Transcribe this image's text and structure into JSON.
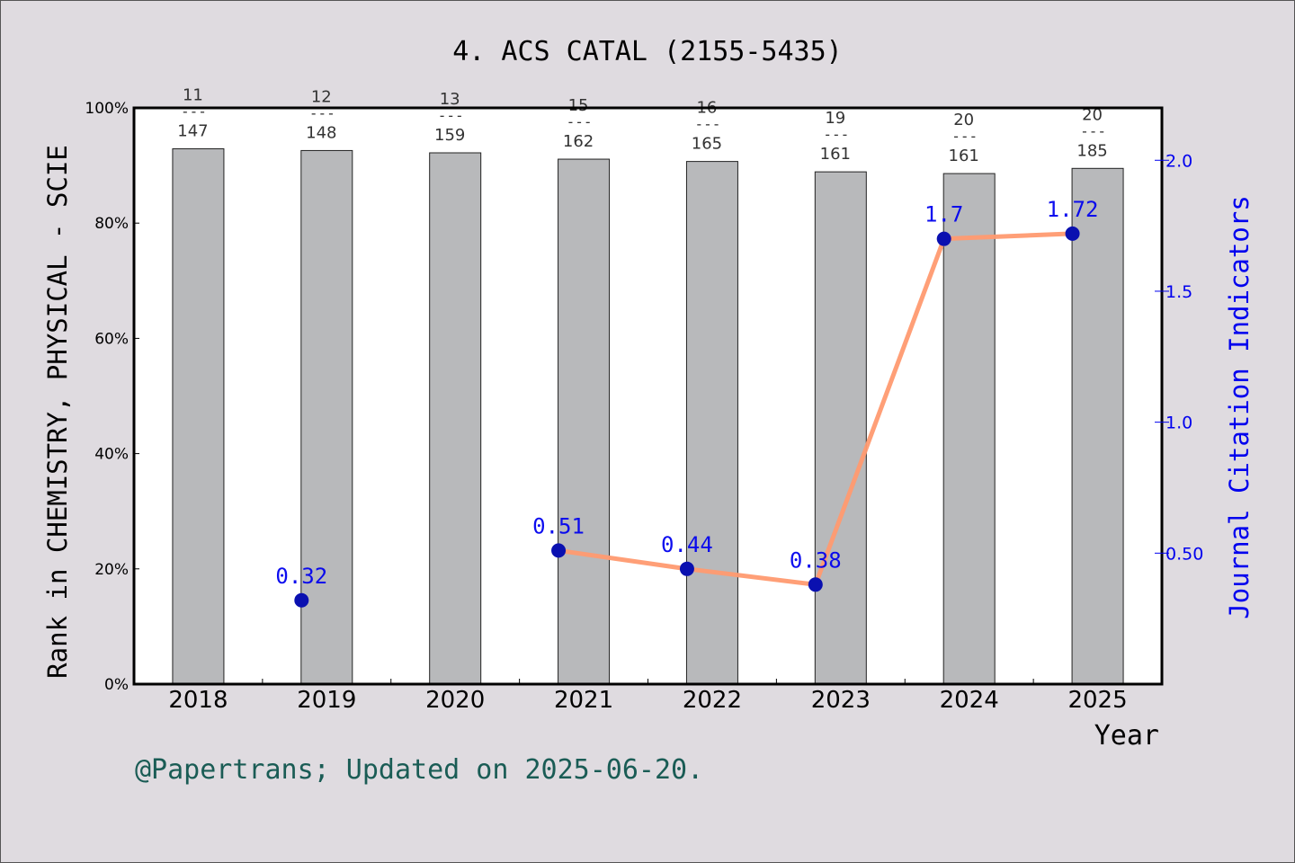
{
  "chart_data": {
    "type": "bar",
    "title": "4. ACS CATAL (2155-5435)",
    "xlabel": "Year",
    "ylabel": "Rank in CHEMISTRY, PHYSICAL - SCIE",
    "y2label": "Journal Citation Indicators",
    "categories": [
      "2018",
      "2019",
      "2020",
      "2021",
      "2022",
      "2023",
      "2024",
      "2025"
    ],
    "ylim": [
      0,
      100
    ],
    "yticks": [
      "0%",
      "20%",
      "40%",
      "60%",
      "80%",
      "100%"
    ],
    "y2lim": [
      0,
      2.2
    ],
    "y2ticks": [
      {
        "value": 0.5,
        "label": "0.50"
      },
      {
        "value": 1.0,
        "label": "1.0"
      },
      {
        "value": 1.5,
        "label": "1.5"
      },
      {
        "value": 2.0,
        "label": "2.0"
      }
    ],
    "bars": {
      "color": "#b8b9bb",
      "values": [
        92.9,
        92.6,
        92.2,
        91.1,
        90.7,
        88.9,
        88.6,
        89.5
      ]
    },
    "ranks": [
      {
        "rank": "11",
        "total": "147"
      },
      {
        "rank": "12",
        "total": "148"
      },
      {
        "rank": "13",
        "total": "159"
      },
      {
        "rank": "15",
        "total": "162"
      },
      {
        "rank": "16",
        "total": "165"
      },
      {
        "rank": "19",
        "total": "161"
      },
      {
        "rank": "20",
        "total": "161"
      },
      {
        "rank": "20",
        "total": "185"
      }
    ],
    "rank_separator": "---",
    "jci": {
      "color": "#ff9a70",
      "marker_color": "#0a10b0",
      "label_color": "#0000ee",
      "points": [
        {
          "category": "2019",
          "value": 0.32,
          "label": "0.32"
        },
        {
          "category": "2021",
          "value": 0.51,
          "label": "0.51"
        },
        {
          "category": "2022",
          "value": 0.44,
          "label": "0.44"
        },
        {
          "category": "2023",
          "value": 0.38,
          "label": "0.38"
        },
        {
          "category": "2024",
          "value": 1.7,
          "label": "1.7"
        },
        {
          "category": "2025",
          "value": 1.72,
          "label": "1.72"
        }
      ],
      "line_from": "2021"
    }
  },
  "footer": "@Papertrans; Updated on 2025-06-20."
}
